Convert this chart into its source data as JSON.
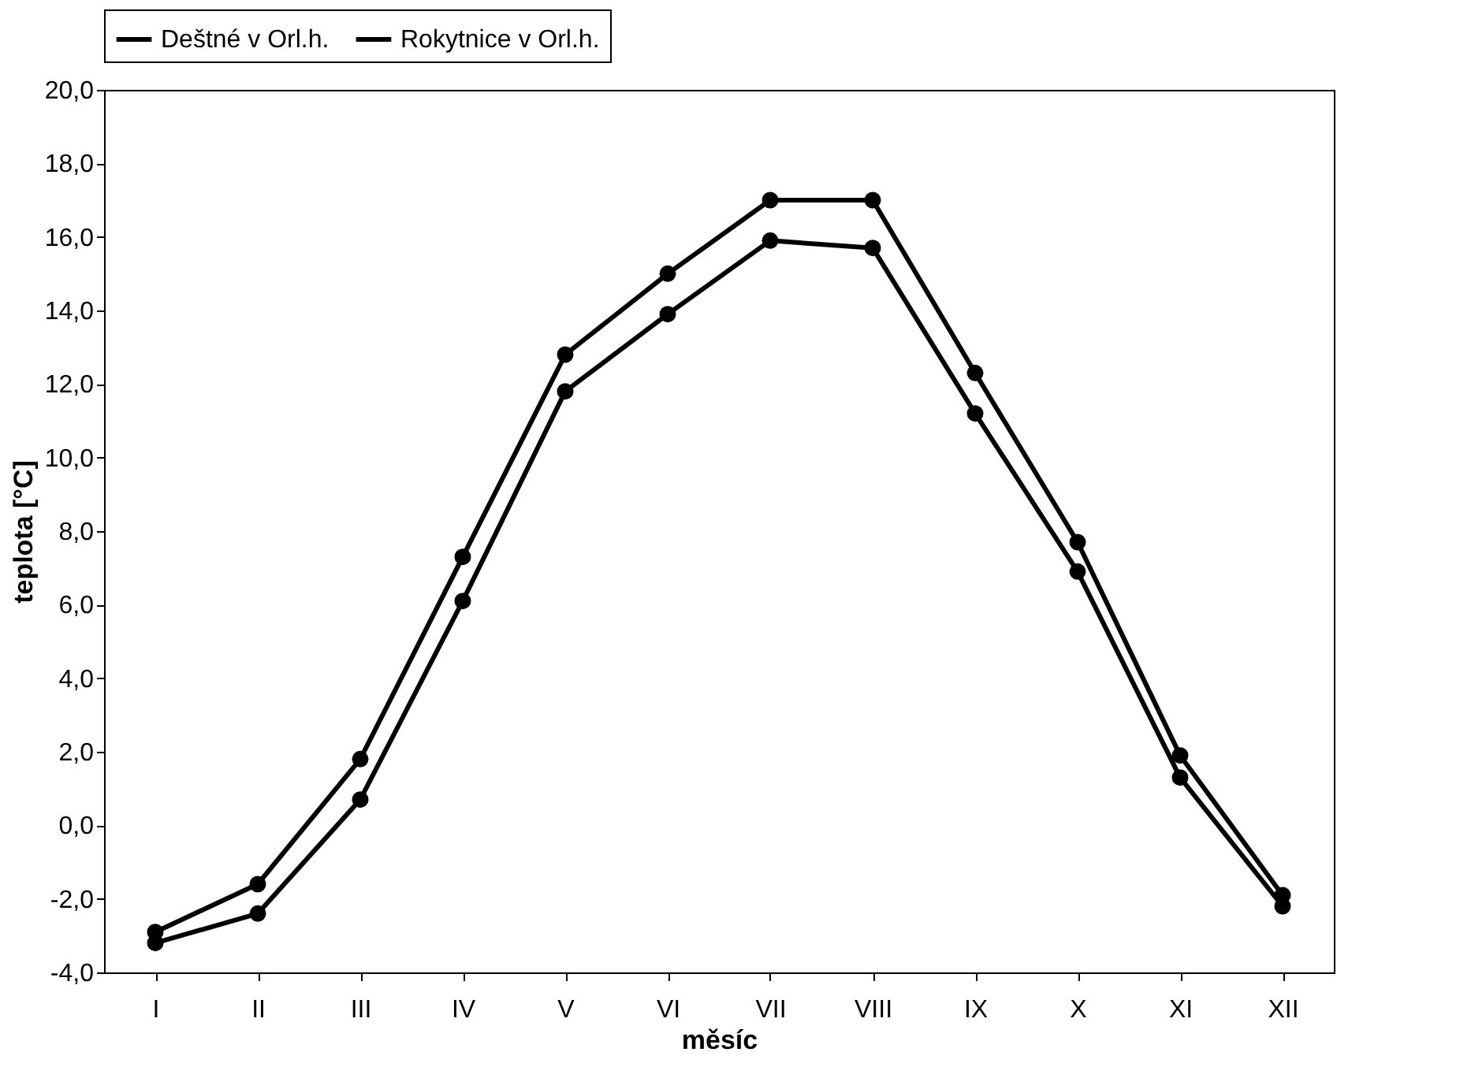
{
  "chart_data": {
    "type": "line",
    "xlabel": "měsíc",
    "ylabel": "teplota [°C]",
    "categories": [
      "I",
      "II",
      "III",
      "IV",
      "V",
      "VI",
      "VII",
      "VIII",
      "IX",
      "X",
      "XI",
      "XII"
    ],
    "series": [
      {
        "name": "Deštné v Orl.h.",
        "color": "#000000",
        "values": [
          -3.2,
          -2.4,
          0.7,
          6.1,
          11.8,
          13.9,
          15.9,
          15.7,
          11.2,
          6.9,
          1.3,
          -2.2
        ]
      },
      {
        "name": "Rokytnice v Orl.h.",
        "color": "#000000",
        "values": [
          -2.9,
          -1.6,
          1.8,
          7.3,
          12.8,
          15.0,
          17.0,
          17.0,
          12.3,
          7.7,
          1.9,
          -1.9
        ]
      }
    ],
    "ylim": [
      -4,
      20
    ],
    "yticks": [
      {
        "value": -4,
        "label": "-4,0"
      },
      {
        "value": -2,
        "label": "-2,0"
      },
      {
        "value": 0,
        "label": "0,0"
      },
      {
        "value": 2,
        "label": "2,0"
      },
      {
        "value": 4,
        "label": "4,0"
      },
      {
        "value": 6,
        "label": "6,0"
      },
      {
        "value": 8,
        "label": "8,0"
      },
      {
        "value": 10,
        "label": "10,0"
      },
      {
        "value": 12,
        "label": "12,0"
      },
      {
        "value": 14,
        "label": "14,0"
      },
      {
        "value": 16,
        "label": "16,0"
      },
      {
        "value": 18,
        "label": "18,0"
      },
      {
        "value": 20,
        "label": "20,0"
      }
    ],
    "legend": "top",
    "marker": "circle",
    "line_style": "solid",
    "grid": false
  }
}
